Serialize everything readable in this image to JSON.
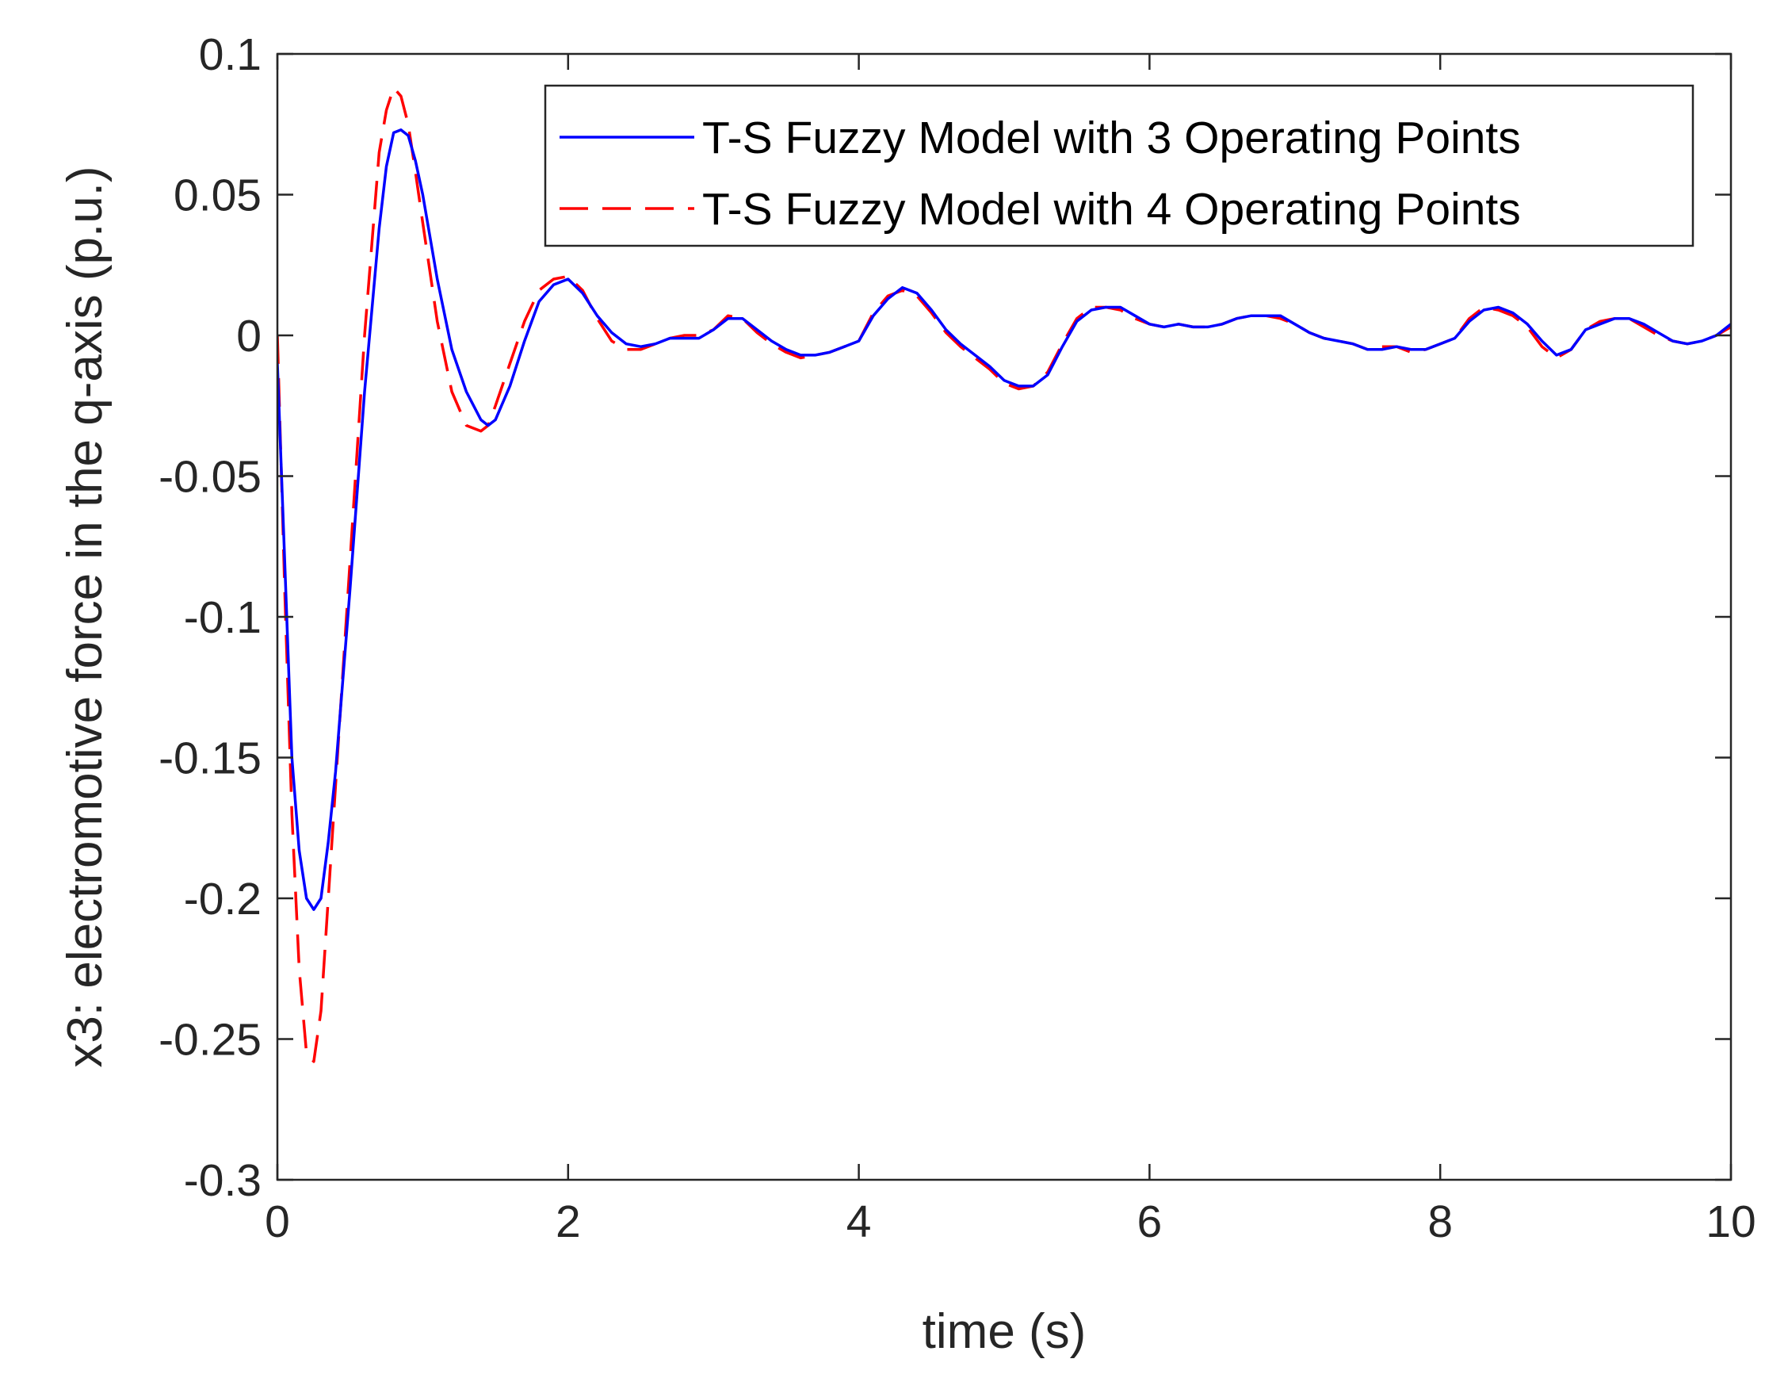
{
  "chart_data": {
    "type": "line",
    "title": "",
    "xlabel": "time (s)",
    "ylabel": "x3: electromotive force in the q-axis (p.u.)",
    "xlim": [
      0,
      10
    ],
    "ylim": [
      -0.3,
      0.1
    ],
    "xticks": [
      0,
      2,
      4,
      6,
      8,
      10
    ],
    "xtick_labels": [
      "0",
      "2",
      "4",
      "6",
      "8",
      "10"
    ],
    "yticks": [
      -0.3,
      -0.25,
      -0.2,
      -0.15,
      -0.1,
      -0.05,
      0,
      0.05,
      0.1
    ],
    "ytick_labels": [
      "-0.3",
      "-0.25",
      "-0.2",
      "-0.15",
      "-0.1",
      "-0.05",
      "0",
      "0.05",
      "0.1"
    ],
    "grid": false,
    "legend_position": "top-right",
    "series": [
      {
        "name": "T-S Fuzzy Model with 3 Operating Points",
        "color": "#0000ff",
        "style": "solid",
        "x": [
          0,
          0.05,
          0.1,
          0.15,
          0.2,
          0.25,
          0.3,
          0.35,
          0.4,
          0.5,
          0.6,
          0.7,
          0.75,
          0.8,
          0.85,
          0.9,
          0.95,
          1.0,
          1.1,
          1.2,
          1.3,
          1.4,
          1.45,
          1.5,
          1.6,
          1.7,
          1.8,
          1.9,
          2.0,
          2.1,
          2.2,
          2.3,
          2.4,
          2.5,
          2.6,
          2.7,
          2.8,
          2.9,
          3.0,
          3.1,
          3.2,
          3.3,
          3.4,
          3.5,
          3.6,
          3.7,
          3.8,
          3.9,
          4.0,
          4.1,
          4.2,
          4.3,
          4.4,
          4.5,
          4.6,
          4.7,
          4.8,
          4.9,
          5.0,
          5.1,
          5.2,
          5.3,
          5.4,
          5.5,
          5.6,
          5.7,
          5.8,
          5.9,
          6.0,
          6.1,
          6.2,
          6.3,
          6.4,
          6.5,
          6.6,
          6.7,
          6.8,
          6.9,
          7.0,
          7.1,
          7.2,
          7.3,
          7.4,
          7.5,
          7.6,
          7.7,
          7.8,
          7.9,
          8.0,
          8.1,
          8.2,
          8.3,
          8.4,
          8.5,
          8.6,
          8.7,
          8.8,
          8.9,
          9.0,
          9.1,
          9.2,
          9.3,
          9.4,
          9.5,
          9.6,
          9.7,
          9.8,
          9.9,
          10.0
        ],
        "y": [
          -0.01,
          -0.08,
          -0.15,
          -0.183,
          -0.2,
          -0.204,
          -0.2,
          -0.18,
          -0.155,
          -0.09,
          -0.02,
          0.038,
          0.06,
          0.072,
          0.073,
          0.071,
          0.062,
          0.05,
          0.02,
          -0.005,
          -0.02,
          -0.03,
          -0.032,
          -0.03,
          -0.018,
          -0.002,
          0.012,
          0.018,
          0.02,
          0.015,
          0.007,
          0.001,
          -0.003,
          -0.004,
          -0.003,
          -0.001,
          -0.001,
          -0.001,
          0.002,
          0.006,
          0.006,
          0.002,
          -0.002,
          -0.005,
          -0.007,
          -0.007,
          -0.006,
          -0.004,
          -0.002,
          0.007,
          0.013,
          0.017,
          0.015,
          0.009,
          0.002,
          -0.003,
          -0.007,
          -0.011,
          -0.016,
          -0.018,
          -0.018,
          -0.014,
          -0.004,
          0.005,
          0.009,
          0.01,
          0.01,
          0.007,
          0.004,
          0.003,
          0.004,
          0.003,
          0.003,
          0.004,
          0.006,
          0.007,
          0.007,
          0.007,
          0.004,
          0.001,
          -0.001,
          -0.002,
          -0.003,
          -0.005,
          -0.005,
          -0.004,
          -0.005,
          -0.005,
          -0.003,
          -0.001,
          0.005,
          0.009,
          0.01,
          0.008,
          0.004,
          -0.002,
          -0.007,
          -0.005,
          0.002,
          0.004,
          0.006,
          0.006,
          0.004,
          0.001,
          -0.002,
          -0.003,
          -0.002,
          0.0,
          0.004
        ]
      },
      {
        "name": "T-S Fuzzy Model with 4 Operating Points",
        "color": "#ff0000",
        "style": "dashed",
        "x": [
          0,
          0.05,
          0.1,
          0.15,
          0.2,
          0.25,
          0.3,
          0.35,
          0.4,
          0.5,
          0.6,
          0.7,
          0.75,
          0.8,
          0.85,
          0.9,
          0.95,
          1.0,
          1.1,
          1.2,
          1.3,
          1.4,
          1.45,
          1.5,
          1.6,
          1.7,
          1.8,
          1.9,
          2.0,
          2.1,
          2.2,
          2.3,
          2.4,
          2.5,
          2.6,
          2.7,
          2.8,
          2.9,
          3.0,
          3.1,
          3.2,
          3.3,
          3.4,
          3.5,
          3.6,
          3.7,
          3.8,
          3.9,
          4.0,
          4.1,
          4.2,
          4.3,
          4.4,
          4.5,
          4.6,
          4.7,
          4.8,
          4.9,
          5.0,
          5.1,
          5.2,
          5.3,
          5.4,
          5.5,
          5.6,
          5.7,
          5.8,
          5.9,
          6.0,
          6.1,
          6.2,
          6.3,
          6.4,
          6.5,
          6.6,
          6.7,
          6.8,
          6.9,
          7.0,
          7.1,
          7.2,
          7.3,
          7.4,
          7.5,
          7.6,
          7.7,
          7.8,
          7.9,
          8.0,
          8.1,
          8.2,
          8.3,
          8.4,
          8.5,
          8.6,
          8.7,
          8.8,
          8.9,
          9.0,
          9.1,
          9.2,
          9.3,
          9.4,
          9.5,
          9.6,
          9.7,
          9.8,
          9.9,
          10.0
        ],
        "y": [
          0.0,
          -0.09,
          -0.17,
          -0.225,
          -0.255,
          -0.258,
          -0.24,
          -0.2,
          -0.16,
          -0.08,
          0.0,
          0.065,
          0.08,
          0.088,
          0.085,
          0.075,
          0.058,
          0.04,
          0.005,
          -0.02,
          -0.032,
          -0.034,
          -0.032,
          -0.025,
          -0.01,
          0.005,
          0.016,
          0.02,
          0.021,
          0.016,
          0.006,
          -0.002,
          -0.005,
          -0.005,
          -0.003,
          -0.001,
          0.0,
          0.0,
          0.002,
          0.007,
          0.006,
          0.001,
          -0.003,
          -0.006,
          -0.008,
          -0.007,
          -0.006,
          -0.004,
          -0.002,
          0.008,
          0.014,
          0.016,
          0.014,
          0.008,
          0.001,
          -0.004,
          -0.008,
          -0.012,
          -0.017,
          -0.019,
          -0.018,
          -0.013,
          -0.003,
          0.006,
          0.01,
          0.01,
          0.009,
          0.006,
          0.004,
          0.003,
          0.004,
          0.003,
          0.003,
          0.004,
          0.006,
          0.007,
          0.007,
          0.006,
          0.004,
          0.001,
          -0.001,
          -0.002,
          -0.003,
          -0.005,
          -0.004,
          -0.004,
          -0.006,
          -0.005,
          -0.003,
          -0.001,
          0.006,
          0.01,
          0.009,
          0.007,
          0.003,
          -0.004,
          -0.008,
          -0.005,
          0.002,
          0.005,
          0.006,
          0.006,
          0.003,
          0.0,
          -0.002,
          -0.003,
          -0.002,
          0.0,
          0.003
        ]
      }
    ]
  }
}
